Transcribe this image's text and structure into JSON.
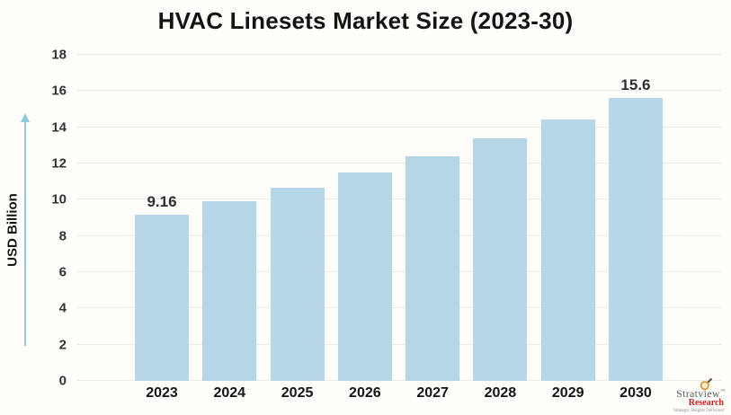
{
  "chart_data": {
    "type": "bar",
    "title": "HVAC Linesets Market Size (2023-30)",
    "ylabel": "USD Billion",
    "xlabel": "",
    "categories": [
      "2023",
      "2024",
      "2025",
      "2026",
      "2027",
      "2028",
      "2029",
      "2030"
    ],
    "values": [
      9.16,
      9.9,
      10.65,
      11.5,
      12.4,
      13.4,
      14.45,
      15.6
    ],
    "data_labels": [
      "9.16",
      "",
      "",
      "",
      "",
      "",
      "",
      "15.6"
    ],
    "ylim": [
      0,
      18
    ],
    "ytick_step": 2,
    "grid": "horizontal",
    "legend": "none",
    "bar_color": "#b5d6e6",
    "arrow_color": "#8fc8da"
  },
  "branding": {
    "name": "Stratview",
    "tm": "™",
    "research": "Research",
    "tagline": "Strategic Insights Delivered"
  }
}
